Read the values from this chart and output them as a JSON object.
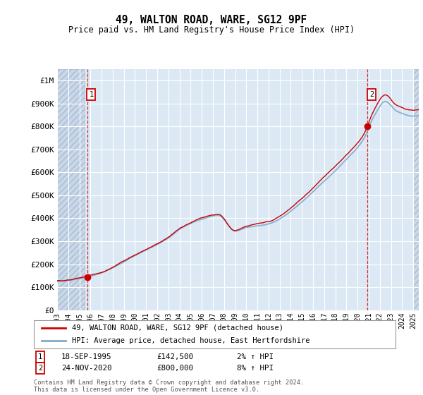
{
  "title": "49, WALTON ROAD, WARE, SG12 9PF",
  "subtitle": "Price paid vs. HM Land Registry's House Price Index (HPI)",
  "yticks": [
    0,
    100000,
    200000,
    300000,
    400000,
    500000,
    600000,
    700000,
    800000,
    900000,
    1000000
  ],
  "ytick_labels": [
    "£0",
    "£100K",
    "£200K",
    "£300K",
    "£400K",
    "£500K",
    "£600K",
    "£700K",
    "£800K",
    "£900K",
    "£1M"
  ],
  "xlim_start": 1993.0,
  "xlim_end": 2025.5,
  "ylim_min": 0,
  "ylim_max": 1050000,
  "background_color": "#dce9f5",
  "hatch_region_color": "#c8d8ea",
  "grid_color": "#ffffff",
  "line_color_red": "#cc0000",
  "line_color_blue": "#80aacc",
  "marker_color": "#cc0000",
  "sale1_x": 1995.72,
  "sale1_y": 142500,
  "sale2_x": 2020.9,
  "sale2_y": 800000,
  "hatch_end": 1995.5,
  "hatch_start2": 2025.0,
  "legend_line1": "49, WALTON ROAD, WARE, SG12 9PF (detached house)",
  "legend_line2": "HPI: Average price, detached house, East Hertfordshire",
  "note1_num": "1",
  "note1_date": "18-SEP-1995",
  "note1_price": "£142,500",
  "note1_hpi": "2% ↑ HPI",
  "note2_num": "2",
  "note2_date": "24-NOV-2020",
  "note2_price": "£800,000",
  "note2_hpi": "8% ↑ HPI",
  "footer": "Contains HM Land Registry data © Crown copyright and database right 2024.\nThis data is licensed under the Open Government Licence v3.0.",
  "xticks": [
    1993,
    1994,
    1995,
    1996,
    1997,
    1998,
    1999,
    2000,
    2001,
    2002,
    2003,
    2004,
    2005,
    2006,
    2007,
    2008,
    2009,
    2010,
    2011,
    2012,
    2013,
    2014,
    2015,
    2016,
    2017,
    2018,
    2019,
    2020,
    2021,
    2022,
    2023,
    2024,
    2025
  ]
}
